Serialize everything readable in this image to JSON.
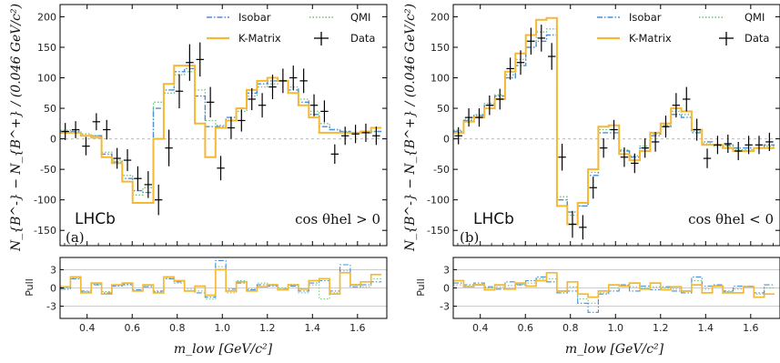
{
  "colors": {
    "isobar": "#4a8fd6",
    "kmatrix": "#f5b834",
    "qmi": "#6fbf7f",
    "data": "#000000",
    "zero_line": "#bbbbbb",
    "frame": "#000000"
  },
  "chart_data": [
    {
      "type": "line",
      "panel_tag": "(a)",
      "experiment_label": "LHCb",
      "condition_label": "cos θhel > 0",
      "ylabel": "N_{B^-} − N_{B^+} / (0.046 GeV/c²)",
      "xlabel": "m_low [GeV/c²]",
      "pull_ylabel": "Pull",
      "xlim": [
        0.28,
        1.73
      ],
      "ylim": [
        -175,
        220
      ],
      "pull_ylim": [
        -5,
        5
      ],
      "xticks": [
        0.4,
        0.6,
        0.8,
        1.0,
        1.2,
        1.4,
        1.6
      ],
      "yticks": [
        -150,
        -100,
        -50,
        0,
        50,
        100,
        150,
        200
      ],
      "pull_yticks": [
        -3,
        0,
        3
      ],
      "legend_location": "top-right",
      "bin_width": 0.046,
      "x_start": 0.28,
      "series": [
        {
          "name": "Isobar",
          "style": "dash-dot",
          "values": [
            12,
            12,
            5,
            5,
            -25,
            -38,
            -65,
            -85,
            -88,
            50,
            80,
            110,
            115,
            70,
            20,
            20,
            35,
            50,
            75,
            90,
            95,
            95,
            80,
            60,
            40,
            20,
            15,
            12,
            10,
            10,
            12
          ]
        },
        {
          "name": "K-Matrix",
          "style": "solid",
          "values": [
            10,
            10,
            5,
            2,
            -30,
            -40,
            -70,
            -105,
            -105,
            0,
            90,
            120,
            120,
            25,
            -30,
            18,
            30,
            50,
            80,
            95,
            100,
            95,
            75,
            55,
            35,
            10,
            10,
            10,
            10,
            12,
            18
          ]
        },
        {
          "name": "QMI",
          "style": "dotted",
          "values": [
            14,
            13,
            8,
            5,
            -22,
            -35,
            -60,
            -92,
            -80,
            60,
            75,
            105,
            110,
            80,
            30,
            22,
            30,
            45,
            70,
            85,
            90,
            95,
            85,
            65,
            45,
            25,
            15,
            12,
            10,
            10,
            12
          ]
        }
      ],
      "data_points": {
        "name": "Data",
        "x": [
          0.303,
          0.349,
          0.395,
          0.441,
          0.487,
          0.533,
          0.579,
          0.625,
          0.671,
          0.717,
          0.763,
          0.809,
          0.855,
          0.901,
          0.947,
          0.993,
          1.039,
          1.085,
          1.131,
          1.177,
          1.223,
          1.269,
          1.315,
          1.361,
          1.407,
          1.453,
          1.499,
          1.545,
          1.591,
          1.637,
          1.683
        ],
        "y": [
          12,
          15,
          -12,
          28,
          15,
          -32,
          -35,
          -65,
          -75,
          -100,
          -15,
          78,
          125,
          130,
          60,
          -48,
          18,
          30,
          65,
          55,
          85,
          95,
          100,
          95,
          55,
          45,
          -25,
          5,
          8,
          10,
          5
        ],
        "yerr": [
          14,
          14,
          15,
          14,
          16,
          17,
          18,
          20,
          22,
          25,
          30,
          28,
          30,
          28,
          25,
          20,
          18,
          18,
          18,
          20,
          20,
          20,
          20,
          20,
          18,
          18,
          16,
          15,
          15,
          15,
          15
        ]
      },
      "pulls": {
        "Isobar": [
          -0.2,
          1.5,
          -0.5,
          0.5,
          -0.8,
          0.3,
          0.5,
          -0.3,
          0.2,
          -0.5,
          1.5,
          1.0,
          -0.5,
          -0.8,
          -1.5,
          4.5,
          -0.2,
          0.8,
          -0.3,
          0.5,
          0.3,
          -0.2,
          0.3,
          -0.5,
          0.8,
          1.2,
          -0.5,
          3.8,
          0.2,
          0.5,
          1.0
        ],
        "K-Matrix": [
          0.2,
          1.8,
          -0.8,
          0.8,
          -1.0,
          0.5,
          0.8,
          -0.5,
          0.5,
          -0.8,
          1.8,
          1.2,
          -0.5,
          0.3,
          -1.2,
          3.0,
          -0.5,
          1.0,
          -0.5,
          0.2,
          0.5,
          -0.3,
          0.5,
          -0.2,
          1.2,
          1.5,
          -1.0,
          2.5,
          0.5,
          1.0,
          2.2
        ],
        "QMI": [
          0.0,
          1.6,
          -0.6,
          0.6,
          -0.6,
          0.4,
          0.6,
          -0.4,
          0.4,
          -0.6,
          1.6,
          0.8,
          -0.2,
          -0.5,
          -1.8,
          3.5,
          -0.8,
          1.2,
          -0.2,
          0.8,
          0.6,
          0.0,
          0.6,
          -0.8,
          0.5,
          -1.8,
          -0.8,
          2.8,
          0.6,
          0.2,
          1.5
        ]
      }
    },
    {
      "type": "line",
      "panel_tag": "(b)",
      "experiment_label": "LHCb",
      "condition_label": "cos θhel < 0",
      "ylabel": "N_{B^-} − N_{B^+} / (0.046 GeV/c²)",
      "xlabel": "m_low [GeV/c²]",
      "pull_ylabel": "Pull",
      "xlim": [
        0.28,
        1.73
      ],
      "ylim": [
        -175,
        220
      ],
      "pull_ylim": [
        -5,
        5
      ],
      "xticks": [
        0.4,
        0.6,
        0.8,
        1.0,
        1.2,
        1.4,
        1.6
      ],
      "yticks": [
        -150,
        -100,
        -50,
        0,
        50,
        100,
        150,
        200
      ],
      "pull_yticks": [
        -3,
        0,
        3
      ],
      "legend_location": "top-right",
      "bin_width": 0.046,
      "x_start": 0.28,
      "series": [
        {
          "name": "Isobar",
          "style": "dash-dot",
          "values": [
            12,
            30,
            38,
            55,
            70,
            100,
            120,
            150,
            160,
            170,
            -100,
            -120,
            -110,
            -60,
            10,
            10,
            -20,
            -30,
            -15,
            5,
            20,
            40,
            35,
            10,
            -5,
            -10,
            -10,
            -15,
            -15,
            -15,
            -10
          ]
        },
        {
          "name": "K-Matrix",
          "style": "solid",
          "values": [
            10,
            28,
            35,
            50,
            65,
            110,
            140,
            170,
            195,
            198,
            -110,
            -140,
            -105,
            -50,
            20,
            22,
            -25,
            -35,
            -20,
            10,
            25,
            50,
            45,
            15,
            -10,
            -10,
            -15,
            -20,
            -20,
            -15,
            -15
          ]
        },
        {
          "name": "QMI",
          "style": "dotted",
          "values": [
            14,
            32,
            40,
            58,
            72,
            105,
            130,
            160,
            175,
            180,
            -95,
            -125,
            -110,
            -55,
            15,
            15,
            -18,
            -28,
            -12,
            8,
            22,
            45,
            40,
            12,
            -8,
            -12,
            -12,
            -18,
            -18,
            -15,
            -12
          ]
        }
      ],
      "data_points": {
        "name": "Data",
        "x": [
          0.303,
          0.349,
          0.395,
          0.441,
          0.487,
          0.533,
          0.579,
          0.625,
          0.671,
          0.717,
          0.763,
          0.809,
          0.855,
          0.901,
          0.947,
          0.993,
          1.039,
          1.085,
          1.131,
          1.177,
          1.223,
          1.269,
          1.315,
          1.361,
          1.407,
          1.453,
          1.499,
          1.545,
          1.591,
          1.637,
          1.683
        ],
        "y": [
          5,
          35,
          35,
          55,
          65,
          115,
          125,
          160,
          165,
          135,
          -30,
          -140,
          -145,
          -80,
          -15,
          15,
          -30,
          -40,
          -15,
          -5,
          20,
          55,
          65,
          15,
          -32,
          -10,
          -8,
          -20,
          -10,
          -10,
          -5
        ],
        "yerr": [
          14,
          15,
          15,
          16,
          17,
          18,
          20,
          22,
          22,
          22,
          22,
          22,
          20,
          18,
          16,
          16,
          16,
          16,
          16,
          16,
          18,
          20,
          20,
          18,
          16,
          15,
          15,
          15,
          15,
          15,
          15
        ]
      },
      "pulls": {
        "Isobar": [
          0.8,
          0.5,
          0.8,
          0.2,
          -0.2,
          1.0,
          0.5,
          1.2,
          1.8,
          1.0,
          -0.8,
          -0.5,
          -2.5,
          -4.0,
          -1.0,
          -0.5,
          0.5,
          -0.5,
          0.3,
          -0.3,
          0.2,
          -0.5,
          -0.8,
          1.8,
          0.3,
          0.5,
          -0.5,
          0.3,
          0.3,
          -0.8,
          0.5
        ],
        "K-Matrix": [
          1.2,
          0.2,
          0.5,
          -0.3,
          0.5,
          -0.2,
          0.8,
          0.3,
          1.2,
          2.5,
          -0.5,
          1.0,
          -1.0,
          -1.5,
          -0.5,
          0.5,
          0.3,
          0.8,
          -0.2,
          0.8,
          -0.3,
          0.2,
          -0.5,
          0.5,
          -0.8,
          0.3,
          -0.8,
          -0.8,
          0.2,
          -1.5,
          -1.0
        ],
        "QMI": [
          0.5,
          0.3,
          0.6,
          0.0,
          0.2,
          0.4,
          0.6,
          0.8,
          1.5,
          1.5,
          -0.6,
          0.2,
          -1.8,
          -2.5,
          -0.8,
          0.0,
          0.4,
          0.2,
          0.0,
          0.2,
          0.0,
          -0.2,
          -0.6,
          1.2,
          -0.2,
          0.4,
          -0.6,
          -0.2,
          0.2,
          -1.0,
          0.0
        ]
      }
    }
  ]
}
